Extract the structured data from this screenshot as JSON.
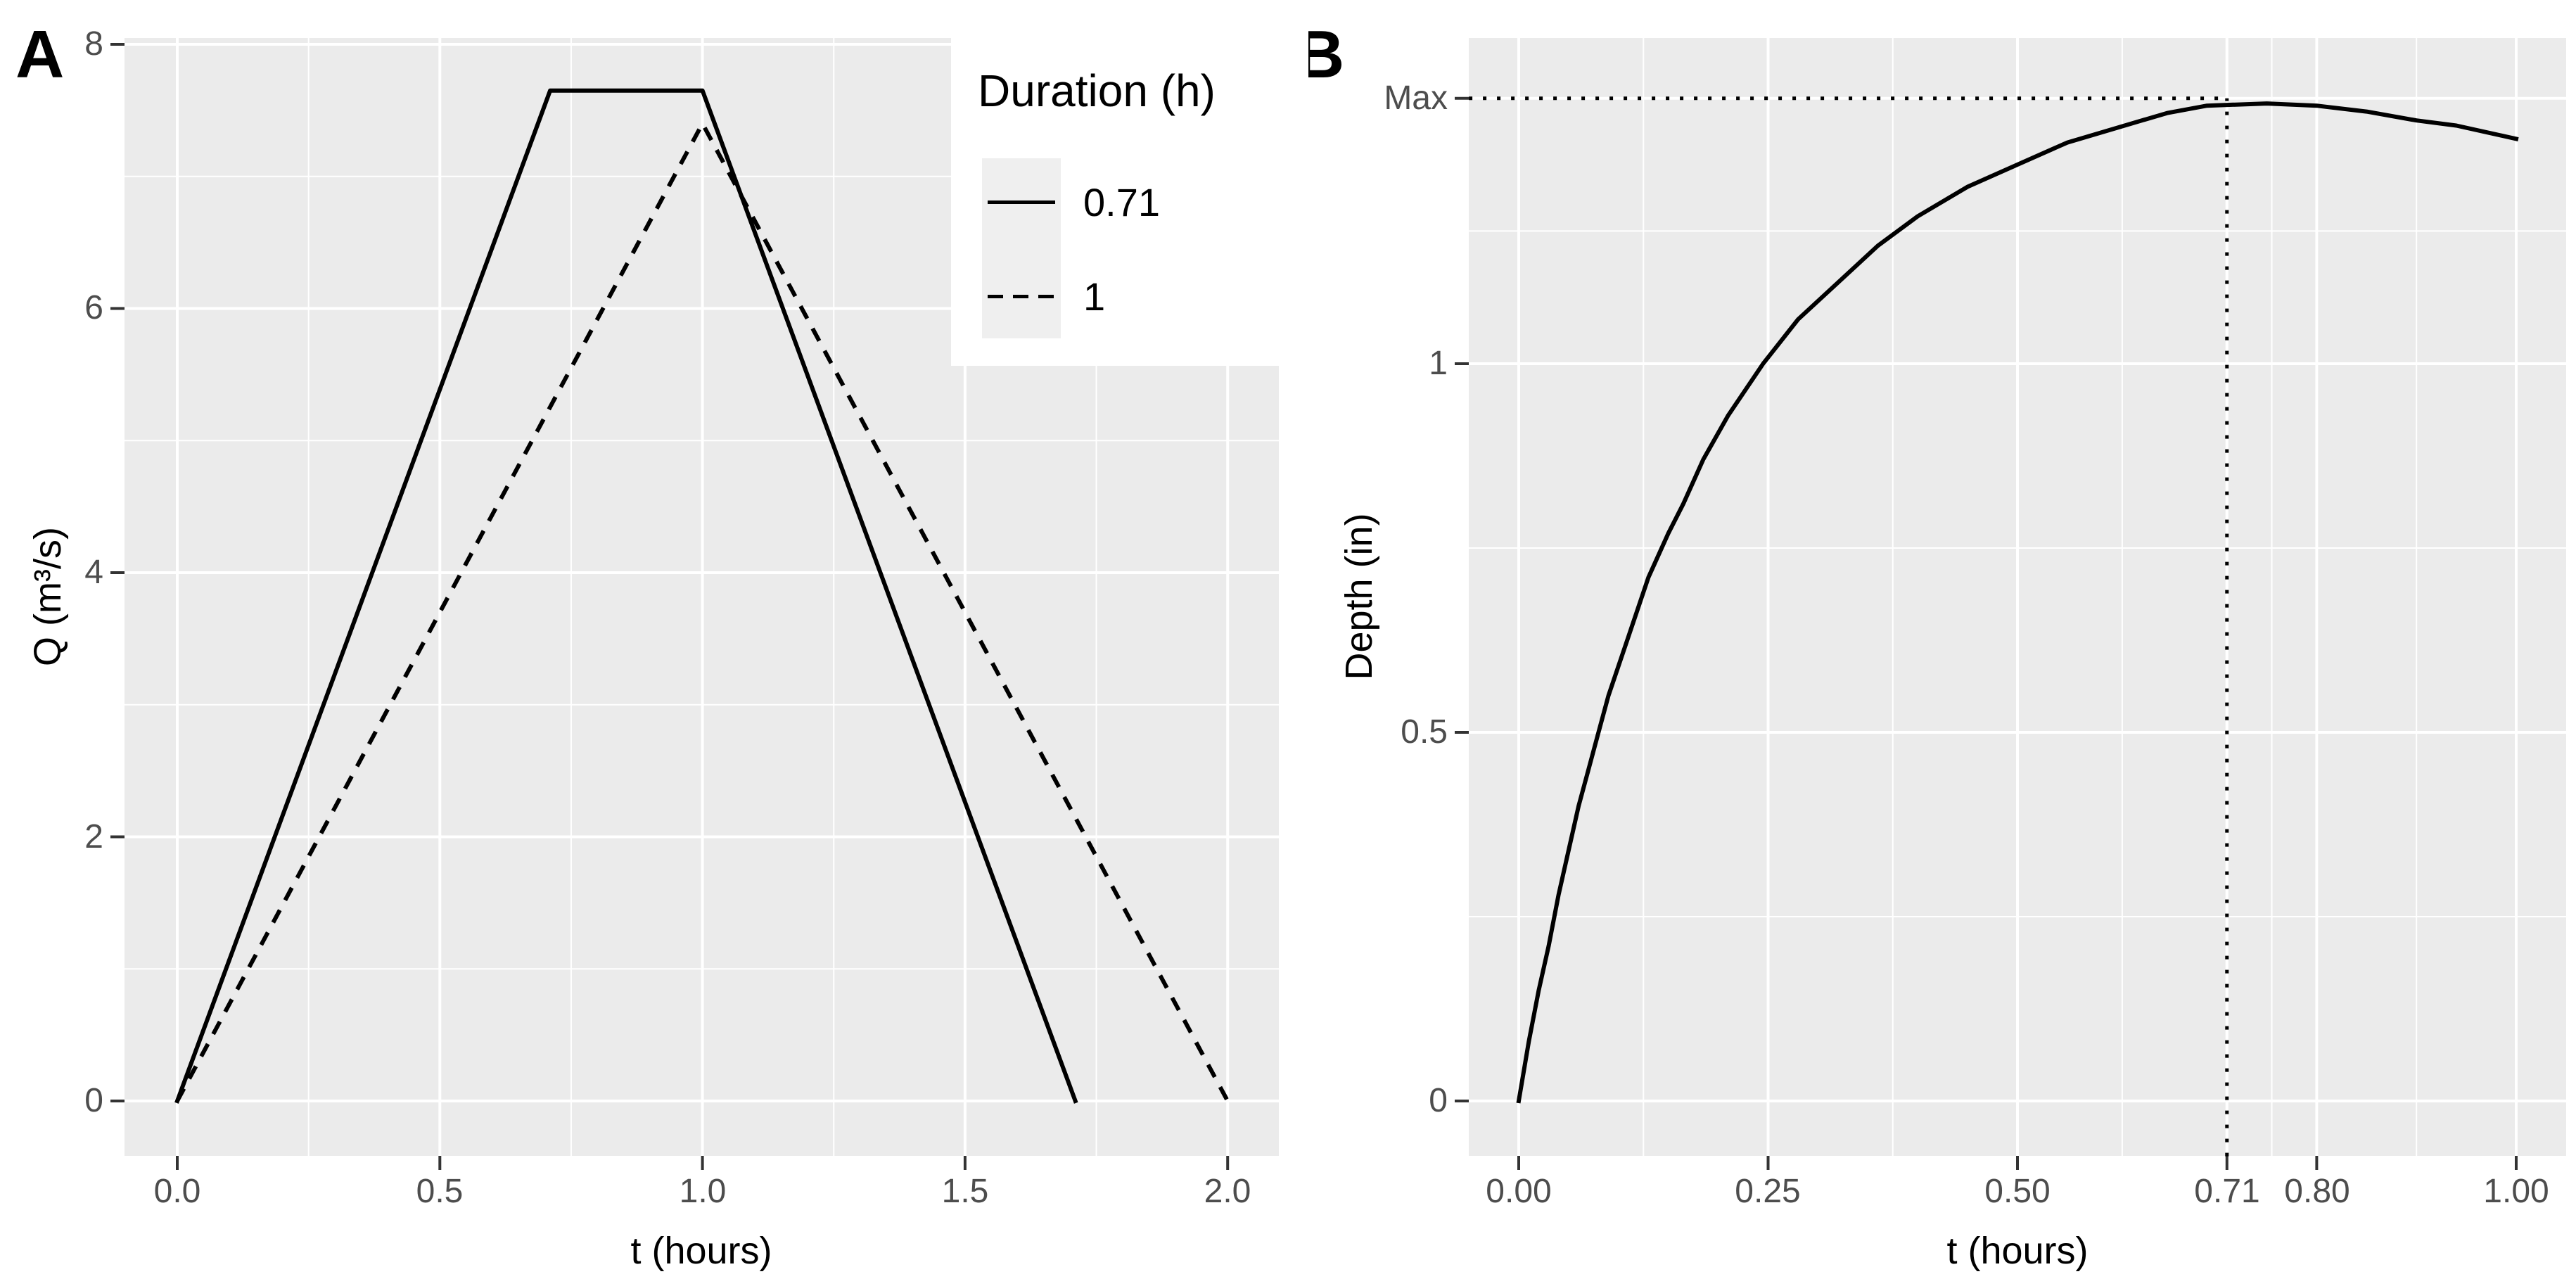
{
  "colors": {
    "page_bg": "#FFFFFF",
    "panel_bg": "#EBEBEB",
    "grid_major": "#FFFFFF",
    "grid_minor": "#FFFFFF",
    "series_line": "#000000",
    "tick_mark": "#333333",
    "tick_label": "#4D4D4D",
    "axis_title": "#000000",
    "legend_bg": "#FFFFFF",
    "legend_key_bg": "#EFEFEF"
  },
  "chart_data": [
    {
      "panel_label": "A",
      "type": "line",
      "title": "",
      "xlabel": "t (hours)",
      "ylabel": "Q (m³/s)",
      "xlim": [
        -0.1,
        2.1
      ],
      "ylim": [
        -0.4,
        8.05
      ],
      "grid": true,
      "x_ticks": [
        {
          "value": 0.0,
          "label": "0.0"
        },
        {
          "value": 0.5,
          "label": "0.5"
        },
        {
          "value": 1.0,
          "label": "1.0"
        },
        {
          "value": 1.5,
          "label": "1.5"
        },
        {
          "value": 2.0,
          "label": "2.0"
        }
      ],
      "x_minor": [
        0.25,
        0.75,
        1.25,
        1.75
      ],
      "y_ticks": [
        {
          "value": 0,
          "label": "0"
        },
        {
          "value": 2,
          "label": "2"
        },
        {
          "value": 4,
          "label": "4"
        },
        {
          "value": 6,
          "label": "6"
        },
        {
          "value": 8,
          "label": "8"
        }
      ],
      "y_minor": [
        1,
        3,
        5,
        7
      ],
      "legend": {
        "title": "Duration (h)",
        "position": "top-right-inside",
        "items": [
          {
            "label": "0.71",
            "linestyle": "solid"
          },
          {
            "label": "1",
            "linestyle": "dashed"
          }
        ]
      },
      "series": [
        {
          "name": "0.71",
          "linestyle": "solid",
          "points": [
            [
              0,
              0
            ],
            [
              0.71,
              7.65
            ],
            [
              1.0,
              7.65
            ],
            [
              1.71,
              0
            ]
          ]
        },
        {
          "name": "1",
          "linestyle": "dashed",
          "points": [
            [
              0,
              0
            ],
            [
              1.0,
              7.4
            ],
            [
              2.0,
              0
            ]
          ]
        }
      ]
    },
    {
      "panel_label": "B",
      "type": "line",
      "title": "",
      "xlabel": "t (hours)",
      "ylabel": "Depth (in)",
      "xlim": [
        -0.05,
        1.05
      ],
      "ylim": [
        -0.075,
        1.44
      ],
      "grid": true,
      "x_ticks": [
        {
          "value": 0.0,
          "label": "0.00"
        },
        {
          "value": 0.25,
          "label": "0.25"
        },
        {
          "value": 0.5,
          "label": "0.50"
        },
        {
          "value": 0.71,
          "label": "0.71"
        },
        {
          "value": 0.8,
          "label": "0.80"
        },
        {
          "value": 1.0,
          "label": "1.00"
        }
      ],
      "x_minor": [
        0.125,
        0.375,
        0.605,
        0.755,
        0.9
      ],
      "y_ticks": [
        {
          "value": 0,
          "label": "0"
        },
        {
          "value": 0.5,
          "label": "0.5"
        },
        {
          "value": 1,
          "label": "1"
        },
        {
          "value": 1.36,
          "label": "Max"
        }
      ],
      "y_minor": [
        0.25,
        0.75,
        1.18
      ],
      "annotations": [
        {
          "type": "hline",
          "style": "dotted",
          "y": 1.36,
          "x_from": -0.05,
          "x_to": 0.71
        },
        {
          "type": "vline",
          "style": "dotted",
          "x": 0.71,
          "y_from": -0.075,
          "y_to": 1.36
        }
      ],
      "series": [
        {
          "name": "Depth",
          "linestyle": "solid",
          "points": [
            [
              0,
              0
            ],
            [
              0.01,
              0.08
            ],
            [
              0.02,
              0.15
            ],
            [
              0.03,
              0.21
            ],
            [
              0.04,
              0.28
            ],
            [
              0.05,
              0.34
            ],
            [
              0.06,
              0.4
            ],
            [
              0.07,
              0.45
            ],
            [
              0.08,
              0.5
            ],
            [
              0.09,
              0.55
            ],
            [
              0.11,
              0.63
            ],
            [
              0.13,
              0.71
            ],
            [
              0.15,
              0.77
            ],
            [
              0.165,
              0.81
            ],
            [
              0.185,
              0.87
            ],
            [
              0.21,
              0.93
            ],
            [
              0.245,
              1.0
            ],
            [
              0.28,
              1.06
            ],
            [
              0.32,
              1.11
            ],
            [
              0.36,
              1.16
            ],
            [
              0.4,
              1.2
            ],
            [
              0.45,
              1.24
            ],
            [
              0.5,
              1.27
            ],
            [
              0.55,
              1.3
            ],
            [
              0.6,
              1.32
            ],
            [
              0.65,
              1.34
            ],
            [
              0.69,
              1.35
            ],
            [
              0.75,
              1.353
            ],
            [
              0.8,
              1.35
            ],
            [
              0.85,
              1.342
            ],
            [
              0.9,
              1.33
            ],
            [
              0.94,
              1.323
            ],
            [
              1.0,
              1.305
            ]
          ]
        }
      ]
    }
  ]
}
